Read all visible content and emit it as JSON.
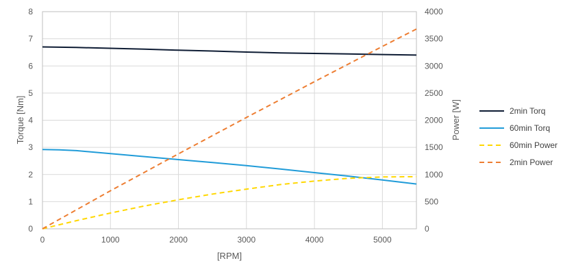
{
  "chart_data": {
    "type": "line",
    "title": "",
    "xlabel": "[RPM]",
    "ylabel_left": "Torque [Nm]",
    "ylabel_right": "Power [W]",
    "xlim": [
      0,
      5500
    ],
    "ylim_left": [
      0,
      8
    ],
    "ylim_right": [
      0,
      4000
    ],
    "x_ticks": [
      "0",
      "1000",
      "2000",
      "3000",
      "4000",
      "5000"
    ],
    "y_left_ticks": [
      "0",
      "1",
      "2",
      "3",
      "4",
      "5",
      "6",
      "7",
      "8"
    ],
    "y_right_ticks": [
      "0",
      "500",
      "1000",
      "1500",
      "2000",
      "2500",
      "3000",
      "3500",
      "4000"
    ],
    "grid": true,
    "legend_position": "right",
    "series": [
      {
        "name": "2min Torq",
        "axis": "left",
        "color": "#0d1b33",
        "style": "solid",
        "x": [
          0,
          500,
          1000,
          1500,
          2000,
          2500,
          3000,
          3500,
          4000,
          4500,
          5000,
          5500
        ],
        "y": [
          6.7,
          6.68,
          6.65,
          6.62,
          6.58,
          6.55,
          6.51,
          6.48,
          6.46,
          6.44,
          6.42,
          6.4
        ]
      },
      {
        "name": "60min Torq",
        "axis": "left",
        "color": "#1f9bd8",
        "style": "solid",
        "x": [
          0,
          250,
          500,
          1000,
          1500,
          2000,
          2500,
          3000,
          3500,
          4000,
          4500,
          5000,
          5500
        ],
        "y": [
          2.92,
          2.91,
          2.88,
          2.77,
          2.66,
          2.55,
          2.44,
          2.33,
          2.2,
          2.07,
          1.94,
          1.8,
          1.65
        ]
      },
      {
        "name": "60min Power",
        "axis": "right",
        "color": "#ffd700",
        "style": "dashed",
        "x": [
          0,
          500,
          1000,
          1500,
          2000,
          2500,
          3000,
          3500,
          4000,
          4500,
          5000,
          5500
        ],
        "y": [
          0,
          150,
          290,
          420,
          535,
          640,
          730,
          815,
          880,
          930,
          955,
          960
        ]
      },
      {
        "name": "2min Power",
        "axis": "right",
        "color": "#ed7d31",
        "style": "dashed",
        "x": [
          0,
          1000,
          2000,
          3000,
          4000,
          5000,
          5500
        ],
        "y": [
          0,
          700,
          1380,
          2050,
          2710,
          3360,
          3680
        ]
      }
    ]
  }
}
